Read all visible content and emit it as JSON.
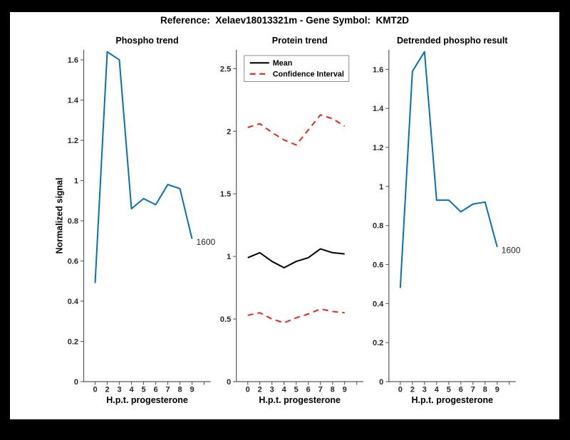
{
  "figure": {
    "title": "Reference:  Xelaev18013321m - Gene Symbol:  KMT2D",
    "background_color": "#ffffff",
    "frame_color": "#000000"
  },
  "colors": {
    "line_blue": "#0072BD",
    "line_red": "#EF241A",
    "line_black": "#000000",
    "axis_gray": "#5a5a5a",
    "tick_text": "#262626",
    "legend_border": "#8c8c8c"
  },
  "chart_data": [
    {
      "id": "phospho-trend",
      "type": "line",
      "title": "Phospho trend",
      "xlabel": "H.p.t. progesterone",
      "ylabel": "Normalized signal",
      "x_tick_labels": [
        "0",
        "2",
        "3",
        "4",
        "5",
        "6",
        "7",
        "8",
        "9",
        ""
      ],
      "ytick_values": [
        0,
        0.2,
        0.4,
        0.6,
        0.8,
        1,
        1.2,
        1.4,
        1.6
      ],
      "ytick_labels": [
        "0",
        "0.2",
        "0.4",
        "0.6",
        "0.8",
        "1",
        "1.2",
        "1.4",
        "1.6"
      ],
      "ylim": [
        0,
        1.65
      ],
      "grid": false,
      "series": [
        {
          "name": "Phospho signal",
          "color": "#0072BD",
          "style": "solid",
          "values": [
            0.49,
            1.64,
            1.6,
            0.86,
            0.91,
            0.88,
            0.98,
            0.96,
            0.71
          ]
        }
      ],
      "annotation": {
        "text": "1600",
        "point_index": 8
      }
    },
    {
      "id": "protein-trend",
      "type": "line",
      "title": "Protein trend",
      "xlabel": "H.p.t. progesterone",
      "ylabel": "",
      "x_tick_labels": [
        "0",
        "2",
        "3",
        "4",
        "5",
        "6",
        "7",
        "8",
        "9",
        ""
      ],
      "ytick_values": [
        0,
        0.5,
        1,
        1.5,
        2,
        2.5
      ],
      "ytick_labels": [
        "0",
        "0.5",
        "1",
        "1.5",
        "2",
        "2.5"
      ],
      "ylim": [
        0,
        2.65
      ],
      "grid": false,
      "legend": {
        "position": "northwest",
        "entries": [
          {
            "label": "Mean",
            "color": "#000000",
            "style": "solid"
          },
          {
            "label": "Confidence Interval",
            "color": "#EF241A",
            "style": "dashed"
          }
        ]
      },
      "series": [
        {
          "name": "Mean",
          "color": "#000000",
          "style": "solid",
          "values": [
            0.99,
            1.03,
            0.96,
            0.91,
            0.96,
            0.99,
            1.06,
            1.03,
            1.02
          ]
        },
        {
          "name": "Confidence Interval upper",
          "color": "#EF241A",
          "style": "dashed",
          "values": [
            2.03,
            2.06,
            1.99,
            1.93,
            1.89,
            2.01,
            2.13,
            2.1,
            2.04
          ]
        },
        {
          "name": "Confidence Interval lower",
          "color": "#EF241A",
          "style": "dashed",
          "values": [
            0.53,
            0.55,
            0.5,
            0.47,
            0.51,
            0.54,
            0.58,
            0.56,
            0.55
          ]
        }
      ]
    },
    {
      "id": "detrended-phospho-result",
      "type": "line",
      "title": "Detrended phospho result",
      "xlabel": "H.p.t. progesterone",
      "ylabel": "",
      "x_tick_labels": [
        "0",
        "2",
        "3",
        "4",
        "5",
        "6",
        "7",
        "8",
        "9",
        ""
      ],
      "ytick_values": [
        0,
        0.2,
        0.4,
        0.6,
        0.8,
        1,
        1.2,
        1.4,
        1.6
      ],
      "ytick_labels": [
        "0",
        "0.2",
        "0.4",
        "0.6",
        "0.8",
        "1",
        "1.2",
        "1.4",
        "1.6"
      ],
      "ylim": [
        0,
        1.7
      ],
      "grid": false,
      "series": [
        {
          "name": "Detrended phospho signal",
          "color": "#0072BD",
          "style": "solid",
          "values": [
            0.48,
            1.59,
            1.69,
            0.93,
            0.93,
            0.87,
            0.91,
            0.92,
            0.69
          ]
        }
      ],
      "annotation": {
        "text": "1600",
        "point_index": 8
      }
    }
  ]
}
